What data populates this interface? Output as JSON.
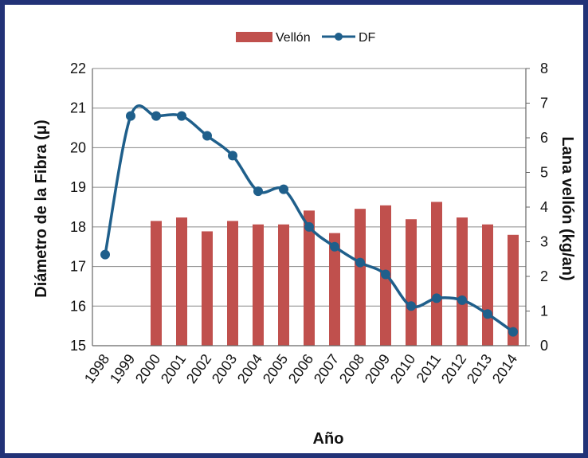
{
  "chart_data": {
    "type": "bar",
    "x": [
      "1998",
      "1999",
      "2000",
      "2001",
      "2002",
      "2003",
      "2004",
      "2005",
      "2006",
      "2007",
      "2008",
      "2009",
      "2010",
      "2011",
      "2012",
      "2013",
      "2014"
    ],
    "xlabel": "Año",
    "ylabel_left": "Diámetro de la Fibra (μ)",
    "ylabel_right": "Lana vellón (kg/an)",
    "ylim_left": [
      15,
      22
    ],
    "ylim_right": [
      0,
      8
    ],
    "yticks_left": [
      "15",
      "16",
      "17",
      "18",
      "19",
      "20",
      "21",
      "22"
    ],
    "yticks_right": [
      "0",
      "1",
      "2",
      "3",
      "4",
      "5",
      "6",
      "7",
      "8"
    ],
    "grid": true,
    "legend_position": "top",
    "series": [
      {
        "name": "Vellón",
        "type": "bar",
        "axis": "right",
        "color": "#c0504d",
        "values": [
          null,
          null,
          3.6,
          3.7,
          3.3,
          3.6,
          3.5,
          3.5,
          3.9,
          3.25,
          3.95,
          4.05,
          3.65,
          4.15,
          3.7,
          3.5,
          3.2
        ]
      },
      {
        "name": "DF",
        "type": "line",
        "axis": "left",
        "color": "#1f5f8b",
        "values": [
          17.3,
          20.8,
          20.8,
          20.8,
          20.3,
          19.8,
          18.9,
          18.95,
          18.0,
          17.5,
          17.1,
          16.8,
          16.0,
          16.2,
          16.15,
          15.8,
          15.35
        ]
      }
    ]
  }
}
